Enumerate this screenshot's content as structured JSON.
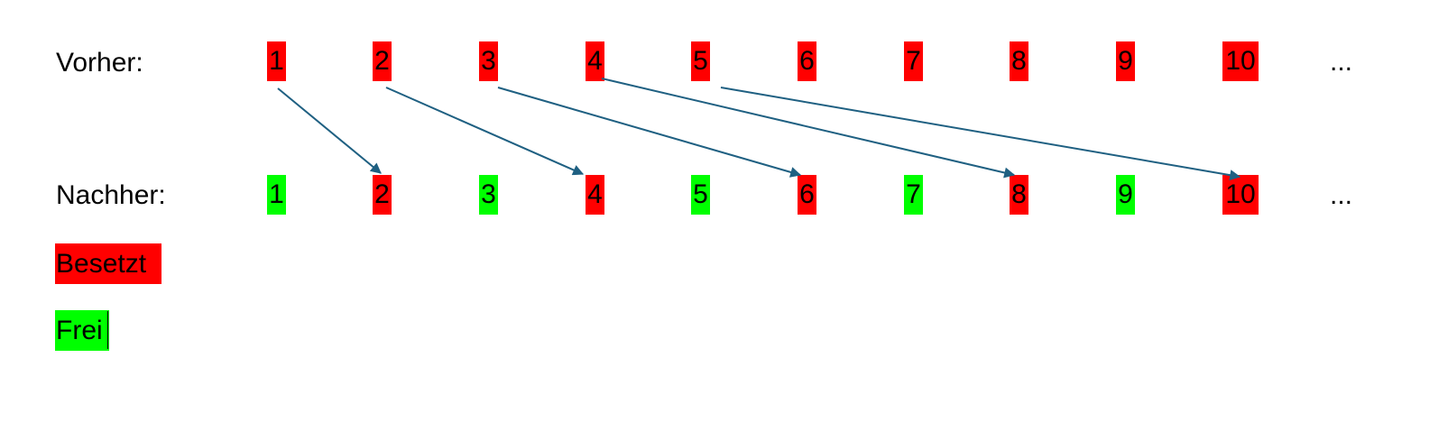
{
  "labels": {
    "before": "Vorher:",
    "after": "Nachher:"
  },
  "colors": {
    "occupied": "#ff0000",
    "free": "#00ff00",
    "arrow": "#1f6082"
  },
  "before_row": [
    {
      "label": "1",
      "state": "occupied"
    },
    {
      "label": "2",
      "state": "occupied"
    },
    {
      "label": "3",
      "state": "occupied"
    },
    {
      "label": "4",
      "state": "occupied"
    },
    {
      "label": "5",
      "state": "occupied"
    },
    {
      "label": "6",
      "state": "occupied"
    },
    {
      "label": "7",
      "state": "occupied"
    },
    {
      "label": "8",
      "state": "occupied"
    },
    {
      "label": "9",
      "state": "occupied"
    },
    {
      "label": "10",
      "state": "occupied"
    }
  ],
  "after_row": [
    {
      "label": "1",
      "state": "free"
    },
    {
      "label": "2",
      "state": "occupied"
    },
    {
      "label": "3",
      "state": "free"
    },
    {
      "label": "4",
      "state": "occupied"
    },
    {
      "label": "5",
      "state": "free"
    },
    {
      "label": "6",
      "state": "occupied"
    },
    {
      "label": "7",
      "state": "free"
    },
    {
      "label": "8",
      "state": "occupied"
    },
    {
      "label": "9",
      "state": "free"
    },
    {
      "label": "10",
      "state": "occupied"
    }
  ],
  "continuation": "...",
  "arrows": [
    {
      "from": "1",
      "to": "2"
    },
    {
      "from": "2",
      "to": "4"
    },
    {
      "from": "3",
      "to": "6"
    },
    {
      "from": "4",
      "to": "8"
    },
    {
      "from": "5",
      "to": "10"
    }
  ],
  "legend": {
    "occupied": "Besetzt",
    "free": "Frei"
  }
}
